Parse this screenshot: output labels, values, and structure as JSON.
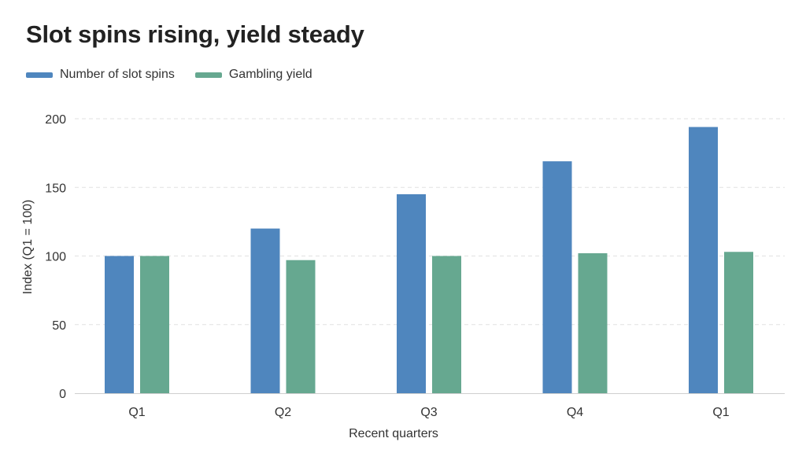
{
  "chart_data": {
    "type": "bar",
    "title": "Slot spins rising, yield steady",
    "xlabel": "Recent quarters",
    "ylabel": "Index (Q1 = 100)",
    "categories": [
      "Q1",
      "Q2",
      "Q3",
      "Q4",
      "Q1"
    ],
    "series": [
      {
        "name": "Number of slot spins",
        "color": "#4f86be",
        "values": [
          100,
          120,
          145,
          169,
          194
        ]
      },
      {
        "name": "Gambling yield",
        "color": "#66a890",
        "values": [
          100,
          97,
          100,
          102,
          103
        ]
      }
    ],
    "ylim": [
      0,
      200
    ],
    "yticks": [
      0,
      50,
      100,
      150,
      200
    ],
    "grid": true,
    "legend": "top-left"
  }
}
